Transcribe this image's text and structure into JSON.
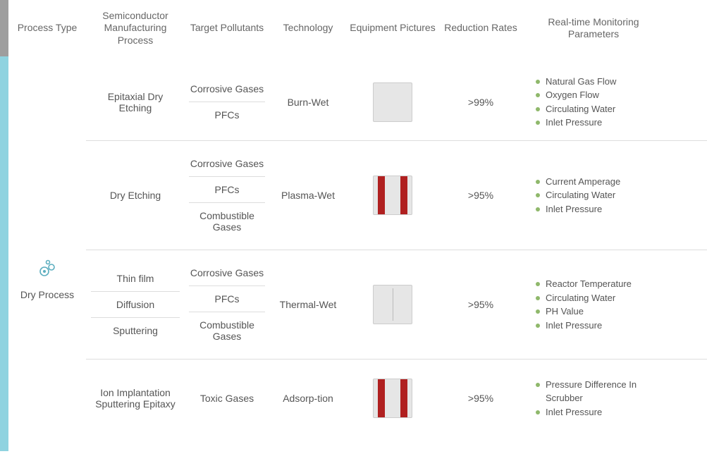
{
  "headers": {
    "process_type": "Process Type",
    "manufacturing": "Semiconductor Manufacturing Process",
    "pollutants": "Target Pollutants",
    "technology": "Technology",
    "equipment": "Equipment Pictures",
    "reduction": "Reduction Rates",
    "monitoring": "Real-time Monitoring Parameters"
  },
  "process_type": {
    "label": "Dry Process",
    "icon_color": "#5caebf"
  },
  "colors": {
    "header_bar": "#9e9e9e",
    "body_bar": "#8fd3e0",
    "bullet": "#8fb86b",
    "text": "#555555",
    "divider": "#dddddd"
  },
  "rows": [
    {
      "manufacturing": [
        "Epitaxial Dry Etching"
      ],
      "pollutants": [
        "Corrosive Gases",
        "PFCs"
      ],
      "technology": "Burn-Wet",
      "equipment_style": "plain",
      "reduction": ">99%",
      "monitoring": [
        "Natural Gas Flow",
        "Oxygen Flow",
        "Circulating Water",
        "Inlet Pressure"
      ]
    },
    {
      "manufacturing": [
        "Dry Etching"
      ],
      "pollutants": [
        "Corrosive Gases",
        "PFCs",
        "Combustible Gases"
      ],
      "technology": "Plasma-Wet",
      "equipment_style": "red",
      "reduction": ">95%",
      "monitoring": [
        "Current Amperage",
        "Circulating Water",
        "Inlet Pressure"
      ]
    },
    {
      "manufacturing": [
        "Thin film",
        "Diffusion",
        "Sputtering"
      ],
      "pollutants": [
        "Corrosive Gases",
        "PFCs",
        "Combustible Gases"
      ],
      "technology": "Thermal-Wet",
      "equipment_style": "cabinet",
      "reduction": ">95%",
      "monitoring": [
        "Reactor Temperature",
        "Circulating Water",
        "PH Value",
        "Inlet Pressure"
      ]
    },
    {
      "manufacturing": [
        "Ion Implantation Sputtering Epitaxy"
      ],
      "pollutants": [
        "Toxic Gases"
      ],
      "technology": "Adsorp-tion",
      "equipment_style": "red",
      "reduction": ">95%",
      "monitoring": [
        "Pressure Difference In Scrubber",
        "Inlet Pressure"
      ]
    }
  ]
}
